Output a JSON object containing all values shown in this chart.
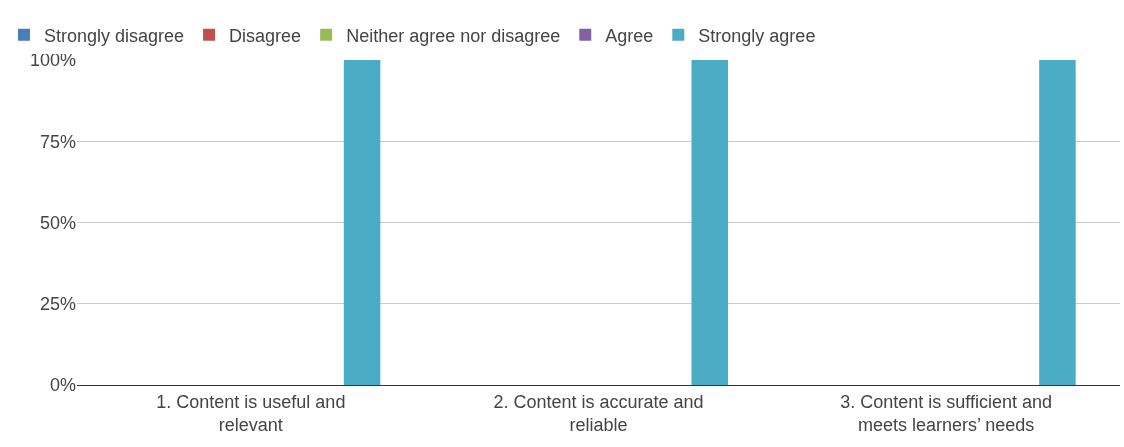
{
  "chart_data": {
    "type": "bar",
    "categories": [
      "1. Content is useful and relevant",
      "2. Content is accurate and reliable",
      "3. Content is sufficient and meets learners’ needs"
    ],
    "series": [
      {
        "name": "Strongly disagree",
        "color": "#4a7ebb",
        "values": [
          0,
          0,
          0
        ]
      },
      {
        "name": "Disagree",
        "color": "#c0504d",
        "values": [
          0,
          0,
          0
        ]
      },
      {
        "name": "Neither agree nor disagree",
        "color": "#9bbb59",
        "values": [
          0,
          0,
          0
        ]
      },
      {
        "name": "Agree",
        "color": "#8064a2",
        "values": [
          0,
          0,
          0
        ]
      },
      {
        "name": "Strongly agree",
        "color": "#4bacc6",
        "values": [
          100,
          100,
          100
        ]
      }
    ],
    "ylim": [
      0,
      100
    ],
    "yticks": [
      {
        "value": 0,
        "label": "0%"
      },
      {
        "value": 25,
        "label": "25%"
      },
      {
        "value": 50,
        "label": "50%"
      },
      {
        "value": 75,
        "label": "75%"
      },
      {
        "value": 100,
        "label": "100%"
      }
    ],
    "grid": "y",
    "legend": "top"
  }
}
